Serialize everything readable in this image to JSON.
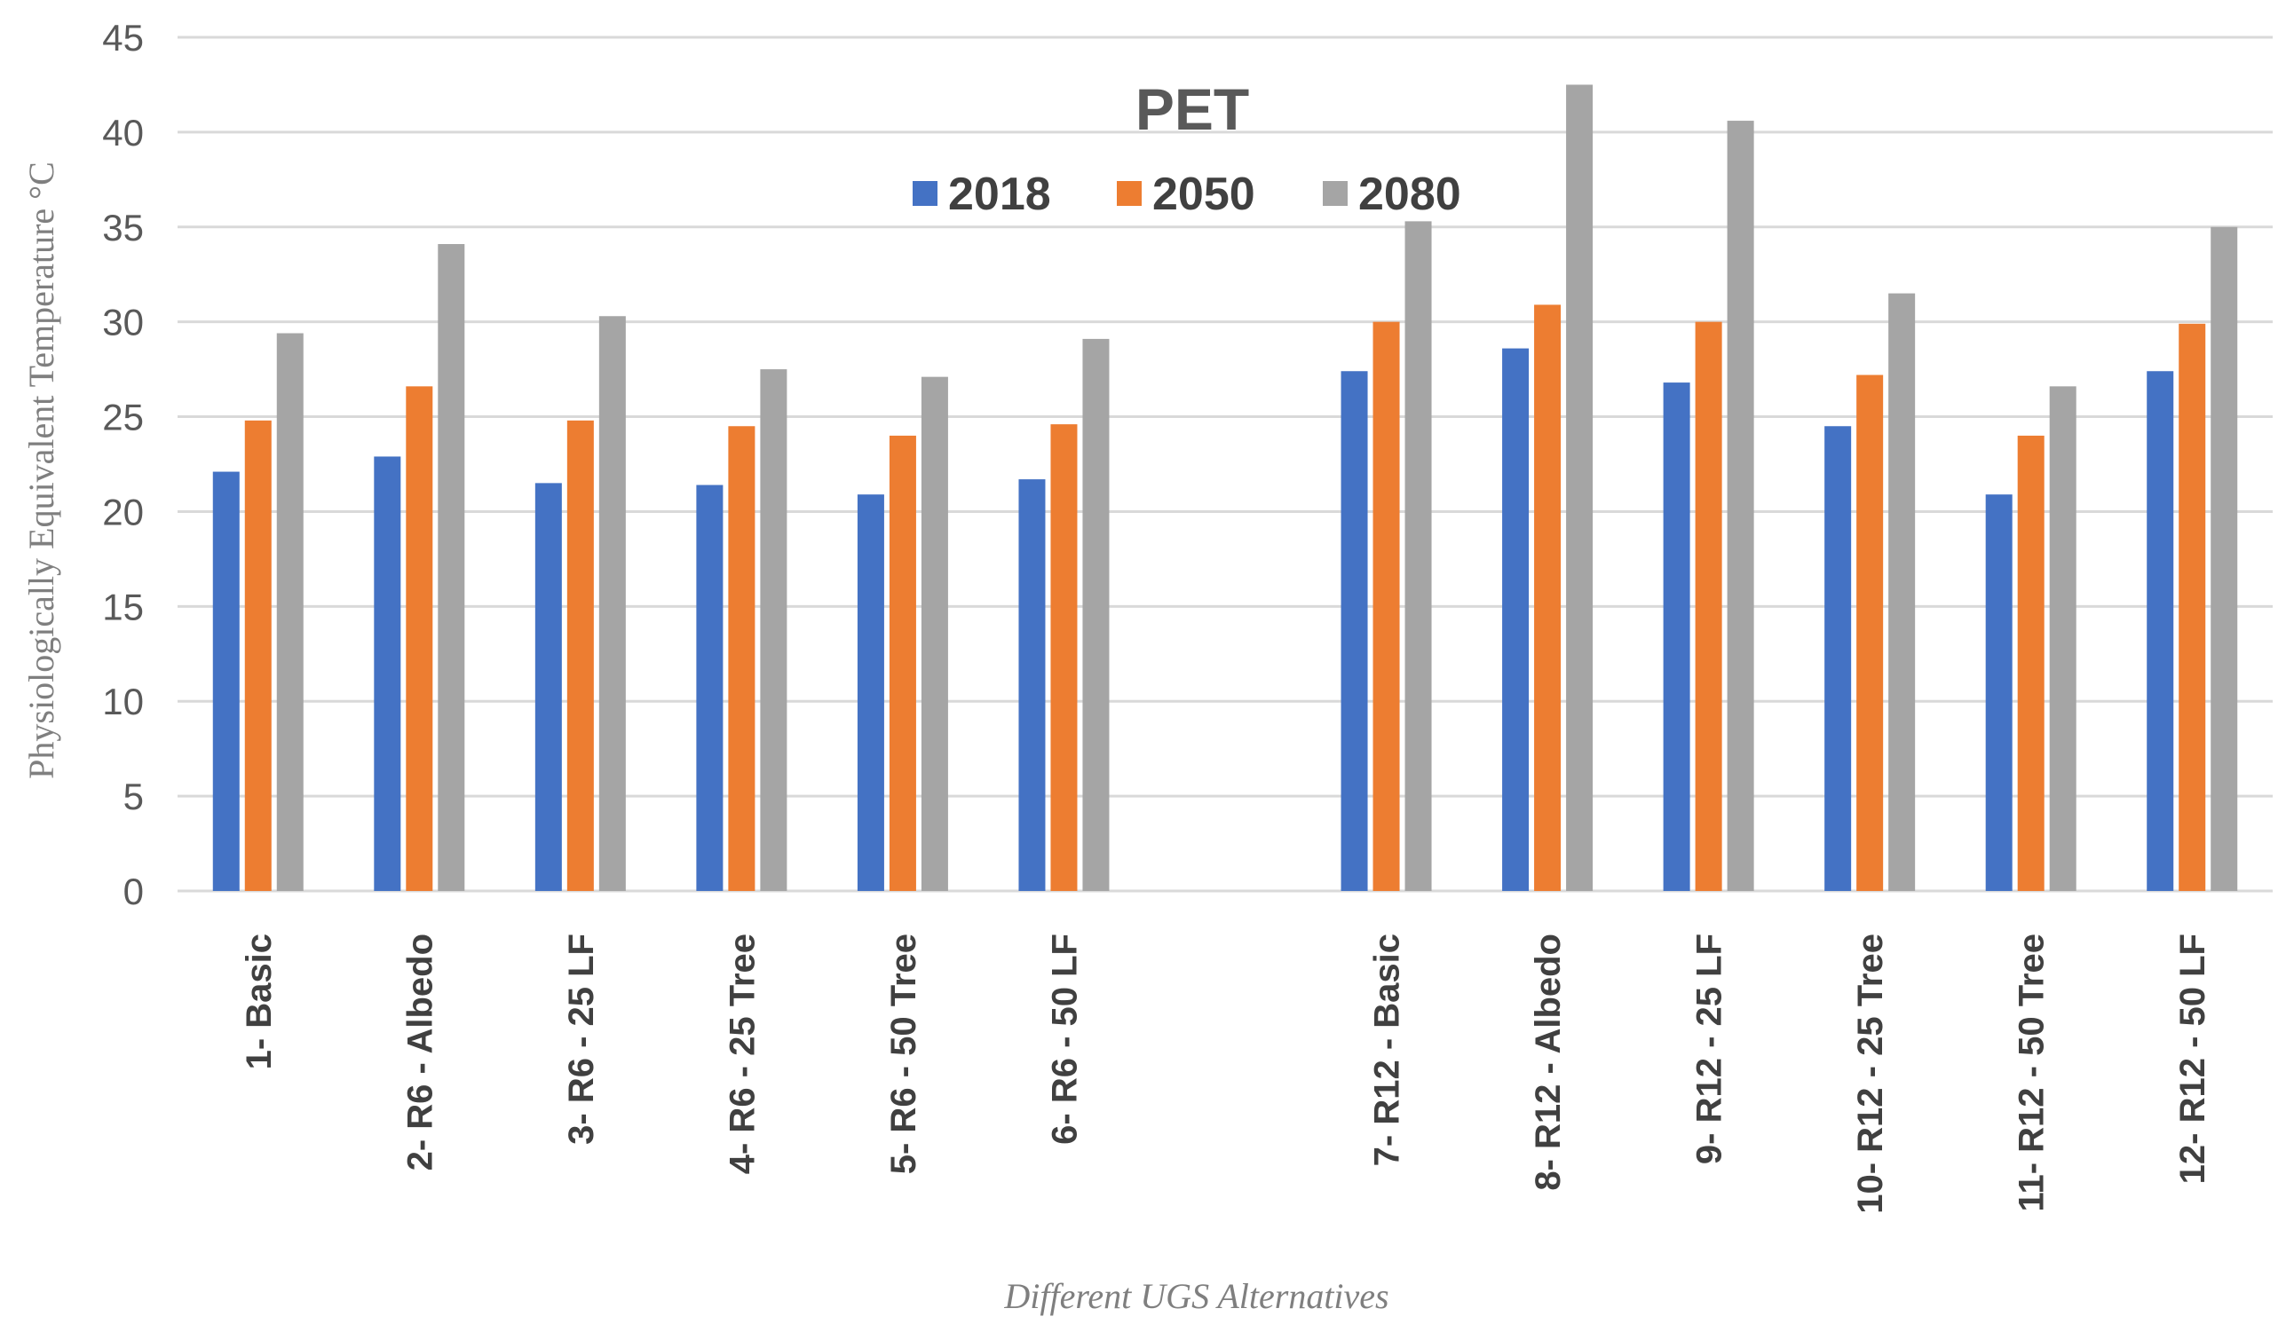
{
  "chart_data": {
    "type": "bar",
    "title": "PET",
    "xlabel": "Different UGS Alternatives",
    "ylabel": "Physiologically Equivalent Temperature °C",
    "ylim": [
      0,
      45
    ],
    "yticks": [
      0,
      5,
      10,
      15,
      20,
      25,
      30,
      35,
      40,
      45
    ],
    "grid": true,
    "legend_position": "top-center",
    "categories": [
      "1- Basic",
      "2- R6 - Albedo",
      "3- R6 - 25 LF",
      "4- R6 - 25 Tree",
      "5- R6 - 50 Tree",
      "6- R6 - 50 LF",
      "",
      "7- R12 - Basic",
      "8- R12 - Albedo",
      "9- R12 - 25 LF",
      "10- R12 - 25 Tree",
      "11- R12 - 50 Tree",
      "12- R12 - 50 LF"
    ],
    "series": [
      {
        "name": "2018",
        "color": "#4472c4",
        "values": [
          22.1,
          22.9,
          21.5,
          21.4,
          20.9,
          21.7,
          null,
          27.4,
          28.6,
          26.8,
          24.5,
          20.9,
          27.4
        ]
      },
      {
        "name": "2050",
        "color": "#ed7d31",
        "values": [
          24.8,
          26.6,
          24.8,
          24.5,
          24.0,
          24.6,
          null,
          30.0,
          30.9,
          30.0,
          27.2,
          24.0,
          29.9
        ]
      },
      {
        "name": "2080",
        "color": "#a5a5a5",
        "values": [
          29.4,
          34.1,
          30.3,
          27.5,
          27.1,
          29.1,
          null,
          35.3,
          42.5,
          40.6,
          31.5,
          26.6,
          35.0
        ]
      }
    ]
  }
}
